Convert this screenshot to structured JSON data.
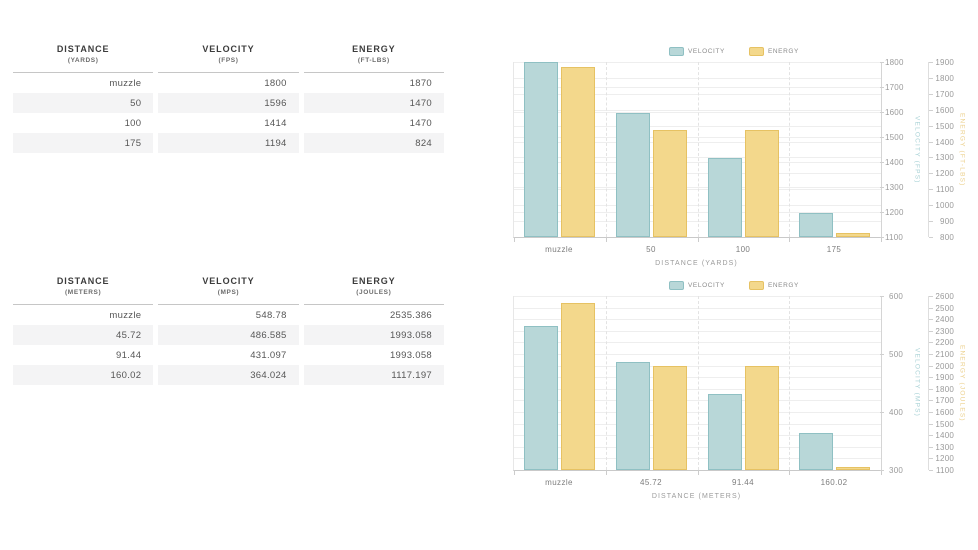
{
  "tables": [
    {
      "name": "imperial",
      "columns": [
        {
          "label": "DISTANCE",
          "unit": "(YARDS)"
        },
        {
          "label": "VELOCITY",
          "unit": "(FPS)"
        },
        {
          "label": "ENERGY",
          "unit": "(FT-LBS)"
        }
      ],
      "rows": [
        [
          "muzzle",
          "1800",
          "1870"
        ],
        [
          "50",
          "1596",
          "1470"
        ],
        [
          "100",
          "1414",
          "1470"
        ],
        [
          "175",
          "1194",
          "824"
        ]
      ]
    },
    {
      "name": "metric",
      "columns": [
        {
          "label": "DISTANCE",
          "unit": "(METERS)"
        },
        {
          "label": "VELOCITY",
          "unit": "(MPS)"
        },
        {
          "label": "ENERGY",
          "unit": "(JOULES)"
        }
      ],
      "rows": [
        [
          "muzzle",
          "548.78",
          "2535.386"
        ],
        [
          "45.72",
          "486.585",
          "1993.058"
        ],
        [
          "91.44",
          "431.097",
          "1993.058"
        ],
        [
          "160.02",
          "364.024",
          "1117.197"
        ]
      ]
    }
  ],
  "chart_data": [
    {
      "type": "bar",
      "categories": [
        "muzzle",
        "50",
        "100",
        "175"
      ],
      "series": [
        {
          "name": "VELOCITY",
          "axis": "left",
          "values": [
            1800,
            1596,
            1414,
            1194
          ],
          "fill": "#b8d7d8",
          "border": "#8fc0c3"
        },
        {
          "name": "ENERGY",
          "axis": "right",
          "values": [
            1870,
            1470,
            1470,
            824
          ],
          "fill": "#f3d88c",
          "border": "#e6c263"
        }
      ],
      "xlabel": "DISTANCE (YARDS)",
      "left_axis": {
        "label": "VELOCITY (FPS)",
        "min": 1100,
        "max": 1800,
        "step": 100,
        "color": "#a9d2d6"
      },
      "right_axis": {
        "label": "ENERGY (FT-LBS)",
        "min": 800,
        "max": 1900,
        "step": 100,
        "color": "#ecd18e"
      },
      "legend_position": "top",
      "grid": true
    },
    {
      "type": "bar",
      "categories": [
        "muzzle",
        "45.72",
        "91.44",
        "160.02"
      ],
      "series": [
        {
          "name": "VELOCITY",
          "axis": "left",
          "values": [
            548.78,
            486.585,
            431.097,
            364.024
          ],
          "fill": "#b8d7d8",
          "border": "#8fc0c3"
        },
        {
          "name": "ENERGY",
          "axis": "right",
          "values": [
            2535.386,
            1993.058,
            1993.058,
            1117.197
          ],
          "fill": "#f3d88c",
          "border": "#e6c263"
        }
      ],
      "xlabel": "DISTANCE (METERS)",
      "left_axis": {
        "label": "VELOCITY (MPS)",
        "min": 300,
        "max": 600,
        "step": 100,
        "color": "#a9d2d6"
      },
      "right_axis": {
        "label": "ENERGY (JOULES)",
        "min": 1100,
        "max": 2600,
        "step": 100,
        "color": "#ecd18e"
      },
      "legend_position": "top",
      "grid": true
    }
  ]
}
